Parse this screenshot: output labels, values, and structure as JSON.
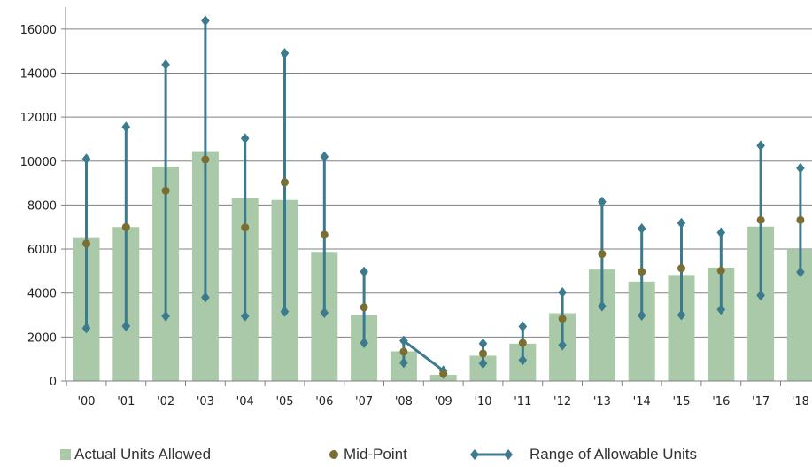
{
  "chart_data": {
    "type": "bar",
    "categories": [
      "'00",
      "'01",
      "'02",
      "'03",
      "'04",
      "'05",
      "'06",
      "'07",
      "'08",
      "'09",
      "'10",
      "'11",
      "'12",
      "'13",
      "'14",
      "'15",
      "'16",
      "'17",
      "'18"
    ],
    "series": [
      {
        "name": "Actual Units Allowed",
        "type": "bar",
        "values": [
          6500,
          7000,
          9750,
          10450,
          8300,
          8230,
          5870,
          3000,
          1350,
          280,
          1150,
          1700,
          3080,
          5070,
          4520,
          4820,
          5160,
          7020,
          6000
        ]
      },
      {
        "name": "Mid-Point",
        "type": "scatter",
        "values": [
          6250,
          7000,
          8650,
          10070,
          6980,
          9030,
          6650,
          3350,
          1330,
          330,
          1250,
          1730,
          2830,
          5780,
          4970,
          5130,
          5020,
          7320,
          7320
        ]
      },
      {
        "name": "Range of Allowable Units",
        "type": "range",
        "low": [
          2400,
          2500,
          2950,
          3800,
          2950,
          3150,
          3100,
          1730,
          830,
          330,
          800,
          950,
          1630,
          3400,
          2980,
          3000,
          3250,
          3900,
          4950
        ],
        "high": [
          10100,
          11550,
          14380,
          16380,
          11030,
          14900,
          10200,
          4970,
          1830,
          470,
          1700,
          2480,
          4030,
          8150,
          6930,
          7180,
          6750,
          10700,
          9680
        ]
      }
    ],
    "ylim": [
      0,
      17000
    ],
    "yticks": [
      0,
      2000,
      4000,
      6000,
      8000,
      10000,
      12000,
      14000,
      16000
    ],
    "grid": "horizontal",
    "legend_position": "bottom",
    "colors": {
      "bar": "#a9c9a8",
      "midpoint": "#7a6e32",
      "range": "#3c7a8e",
      "grid": "#808080"
    }
  },
  "legend": {
    "bar_label": "Actual Units Allowed",
    "mid_label": "Mid-Point",
    "range_label": "Range of Allowable Units"
  }
}
